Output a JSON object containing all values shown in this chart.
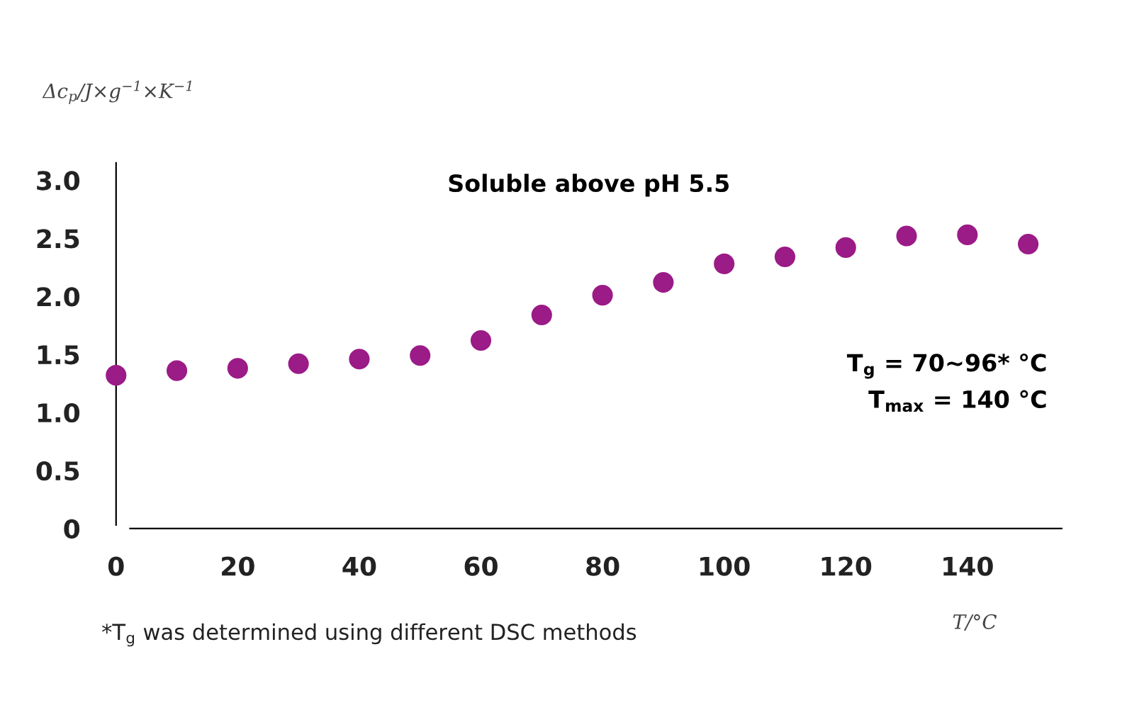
{
  "chart_data": {
    "type": "scatter",
    "title": "Soluble above pH 5.5",
    "x": [
      0,
      10,
      20,
      30,
      40,
      50,
      60,
      70,
      80,
      90,
      100,
      110,
      120,
      130,
      140,
      150
    ],
    "series": [
      {
        "color": "#9b1b87",
        "values": [
          1.32,
          1.36,
          1.38,
          1.42,
          1.46,
          1.49,
          1.62,
          1.84,
          2.01,
          2.12,
          2.28,
          2.34,
          2.42,
          2.52,
          2.53,
          2.45
        ]
      }
    ],
    "xlabel": "T/°C",
    "ylabel": "Δc$_{p}$/J×g$^{−1}$×K$^{−1}$",
    "xlim": [
      0,
      155.5
    ],
    "ylim": [
      0,
      3.15
    ],
    "xticks": [
      0,
      20,
      40,
      60,
      80,
      100,
      120,
      140
    ],
    "yticks": [
      0,
      0.5,
      {
        "value": 1,
        "label": "1.0"
      },
      1.5,
      {
        "value": 2,
        "label": "2.0"
      },
      2.5,
      {
        "value": 3,
        "label": "3.0"
      }
    ],
    "annotations": [
      "T$_{g}$ = 70~96* °C",
      "T$_{max}$ = 140 °C",
      "*T$_{g}$ was determined using different DSC methods"
    ],
    "marker": "circle",
    "grid": false,
    "legend": false
  }
}
